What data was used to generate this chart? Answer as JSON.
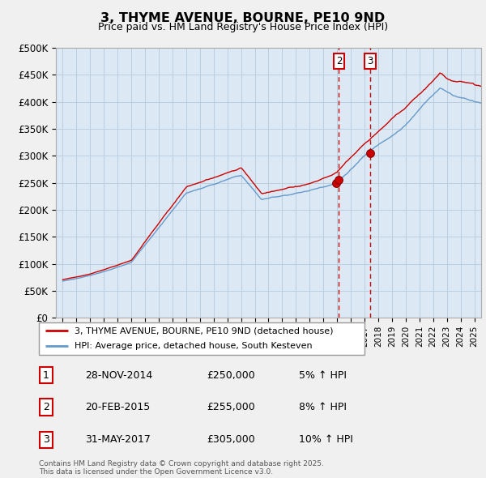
{
  "title": "3, THYME AVENUE, BOURNE, PE10 9ND",
  "subtitle": "Price paid vs. HM Land Registry's House Price Index (HPI)",
  "background_color": "#f0f0f0",
  "plot_bg_color": "#dce9f5",
  "ylabel": "",
  "ylim": [
    0,
    500000
  ],
  "yticks": [
    0,
    50000,
    100000,
    150000,
    200000,
    250000,
    300000,
    350000,
    400000,
    450000,
    500000
  ],
  "ytick_labels": [
    "£0",
    "£50K",
    "£100K",
    "£150K",
    "£200K",
    "£250K",
    "£300K",
    "£350K",
    "£400K",
    "£450K",
    "£500K"
  ],
  "xlim_start": 1994.5,
  "xlim_end": 2025.5,
  "red_line_color": "#cc0000",
  "blue_line_color": "#6699cc",
  "vline_color": "#cc0000",
  "transactions": [
    {
      "label": "1",
      "date_x": 2014.91,
      "price": 250000,
      "date_str": "28-NOV-2014",
      "price_str": "£250,000",
      "pct": "5%"
    },
    {
      "label": "2",
      "date_x": 2015.13,
      "price": 255000,
      "date_str": "20-FEB-2015",
      "price_str": "£255,000",
      "pct": "8%"
    },
    {
      "label": "3",
      "date_x": 2017.41,
      "price": 305000,
      "date_str": "31-MAY-2017",
      "price_str": "£305,000",
      "pct": "10%"
    }
  ],
  "legend_entries": [
    "3, THYME AVENUE, BOURNE, PE10 9ND (detached house)",
    "HPI: Average price, detached house, South Kesteven"
  ],
  "footnote": "Contains HM Land Registry data © Crown copyright and database right 2025.\nThis data is licensed under the Open Government Licence v3.0."
}
